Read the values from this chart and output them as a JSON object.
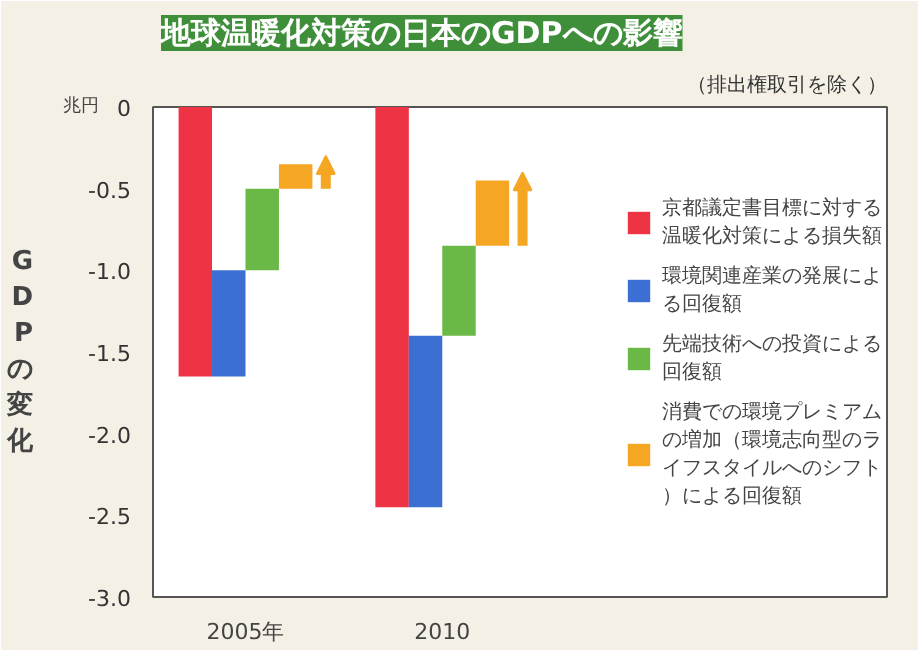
{
  "chart_data": {
    "type": "bar",
    "title": "地球温暖化対策の日本のGDPへの影響",
    "subtitle": "（排出権取引を除く）",
    "ylabel": "GDPの変化",
    "annotations": [
      "兆円"
    ],
    "categories": [
      "2005年",
      "2010"
    ],
    "series": [
      {
        "name": "京都議定書目標に対する温暖化対策による損失額",
        "color": "#ee3344",
        "values": [
          -1.65,
          -2.45
        ],
        "base": [
          0,
          0
        ]
      },
      {
        "name": "環境関連産業の発展による回復額",
        "color": "#3b6fd4",
        "values": [
          0.65,
          1.05
        ],
        "base": [
          -1.65,
          -2.45
        ]
      },
      {
        "name": "先端技術への投資による回復額",
        "color": "#6ab845",
        "values": [
          0.5,
          0.55
        ],
        "base": [
          -1.0,
          -1.4
        ]
      },
      {
        "name": "消費での環境プレミアムの増加（環境志向型のライフスタイルへのシフト）による回復額",
        "color": "#f5a623",
        "values": [
          0.15,
          0.4
        ],
        "base": [
          -0.5,
          -0.85
        ]
      }
    ],
    "ylim": [
      -3.0,
      0
    ],
    "yticks": [
      0,
      -0.5,
      {
        "value": -1,
        "label": "-1.0"
      },
      -1.5,
      {
        "value": -2,
        "label": "-2.0"
      },
      -2.5,
      {
        "value": -3,
        "label": "-3.0"
      }
    ],
    "grid": false,
    "legend": "right"
  }
}
